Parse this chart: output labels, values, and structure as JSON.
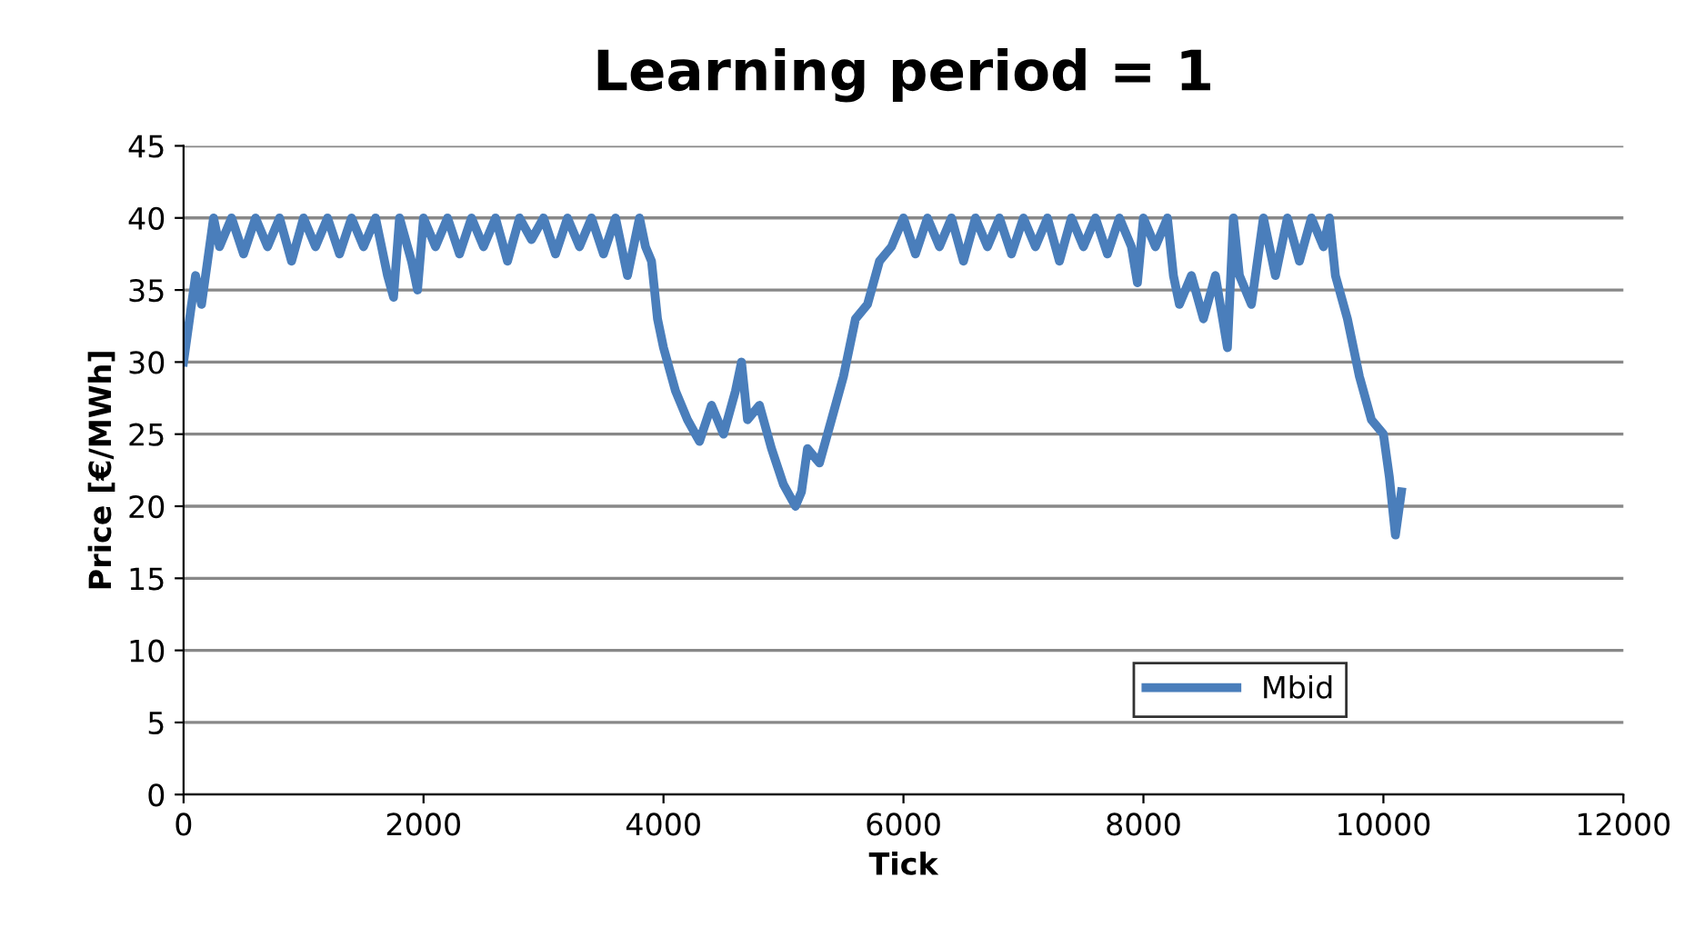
{
  "chart_data": {
    "type": "line",
    "title": "Learning period = 1",
    "xlabel": "Tick",
    "ylabel": "Price [€/MWh]",
    "xlim": [
      0,
      12000
    ],
    "xticks": [
      0,
      2000,
      4000,
      6000,
      8000,
      10000,
      12000
    ],
    "ylim": [
      0,
      45
    ],
    "yticks": [
      0,
      5,
      10,
      15,
      20,
      25,
      30,
      35,
      40,
      45
    ],
    "grid": "y",
    "legend": "bottom right",
    "series": [
      {
        "name": "Mbid",
        "color": "#4a7ebb",
        "x": [
          0,
          50,
          100,
          150,
          200,
          250,
          300,
          400,
          500,
          600,
          700,
          800,
          900,
          1000,
          1100,
          1200,
          1300,
          1400,
          1500,
          1600,
          1700,
          1750,
          1800,
          1900,
          1950,
          2000,
          2100,
          2200,
          2300,
          2400,
          2500,
          2600,
          2700,
          2800,
          2900,
          3000,
          3100,
          3200,
          3300,
          3400,
          3500,
          3600,
          3700,
          3750,
          3800,
          3850,
          3900,
          3950,
          4000,
          4100,
          4200,
          4300,
          4400,
          4500,
          4600,
          4650,
          4700,
          4800,
          4900,
          5000,
          5100,
          5150,
          5200,
          5300,
          5400,
          5500,
          5600,
          5700,
          5800,
          5900,
          6000,
          6100,
          6200,
          6300,
          6400,
          6500,
          6600,
          6700,
          6800,
          6900,
          7000,
          7100,
          7200,
          7300,
          7400,
          7500,
          7600,
          7700,
          7800,
          7900,
          7950,
          8000,
          8100,
          8200,
          8250,
          8300,
          8400,
          8500,
          8600,
          8700,
          8750,
          8800,
          8900,
          9000,
          9100,
          9200,
          9300,
          9400,
          9500,
          9550,
          9600,
          9700,
          9800,
          9900,
          10000,
          10050,
          10100,
          10150
        ],
        "values": [
          30,
          33,
          36,
          34,
          37,
          40,
          38,
          40,
          37.5,
          40,
          38,
          40,
          37,
          40,
          38,
          40,
          37.5,
          40,
          38,
          40,
          36,
          34.5,
          40,
          37,
          35,
          40,
          38,
          40,
          37.5,
          40,
          38,
          40,
          37,
          40,
          38.5,
          40,
          37.5,
          40,
          38,
          40,
          37.5,
          40,
          36,
          38,
          40,
          38,
          37,
          33,
          31,
          28,
          26,
          24.5,
          27,
          25,
          28,
          30,
          26,
          27,
          24,
          21.5,
          20,
          21,
          24,
          23,
          26,
          29,
          33,
          34,
          37,
          38,
          40,
          37.5,
          40,
          38,
          40,
          37,
          40,
          38,
          40,
          37.5,
          40,
          38,
          40,
          37,
          40,
          38,
          40,
          37.5,
          40,
          38,
          35.5,
          40,
          38,
          40,
          36,
          34,
          36,
          33,
          36,
          31,
          40,
          36,
          34,
          40,
          36,
          40,
          37,
          40,
          38,
          40,
          36,
          33,
          29,
          26,
          25,
          22,
          18,
          21
        ]
      }
    ]
  }
}
